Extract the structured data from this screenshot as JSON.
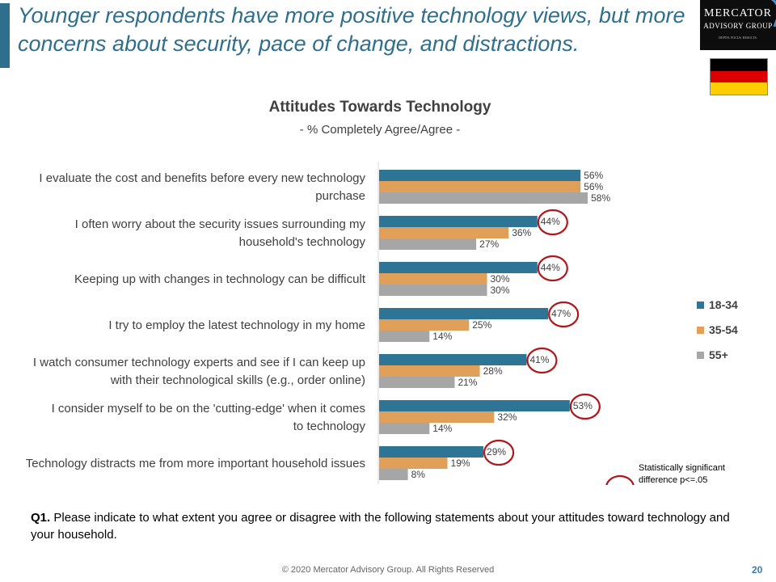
{
  "slide": {
    "headline": "Younger respondents have more positive technology views, but more concerns about security, pace of change, and distractions.",
    "logo_line1": "MERCATOR",
    "logo_line2": "ADVISORY GROUP",
    "logo_tagline": "DEPTH. FOCUS. RESULTS.",
    "footnote_q": "Q1.",
    "footnote_text": " Please indicate to what extent you agree or disagree with the following statements about your attitudes toward technology and your household.",
    "sig_legend_text": "Statistically significant difference p<=.05",
    "copyright": "© 2020 Mercator Advisory Group. All Rights Reserved",
    "page_number": "20"
  },
  "colors": {
    "accent": "#2e6f8e",
    "series_18_34": "#2e7595",
    "series_35_54": "#e0a05a",
    "series_55_plus": "#a6a6a6",
    "circle": "#b0161c",
    "flag_black": "#000000",
    "flag_red": "#dd0000",
    "flag_gold": "#ffce00"
  },
  "chart_data": {
    "type": "bar",
    "orientation": "horizontal",
    "title": "Attitudes Towards Technology",
    "subtitle": "- % Completely Agree/Agree -",
    "categories": [
      "I evaluate the cost and benefits before every new technology purchase",
      "I often worry about the security issues surrounding my household's technology",
      "Keeping up with changes in technology can be difficult",
      "I try to employ the latest technology in my home",
      "I watch consumer technology experts and see if I can keep up with their technological skills (e.g., order online)",
      "I consider myself to be on the 'cutting-edge' when it comes to technology",
      "Technology distracts me from more important household issues"
    ],
    "series": [
      {
        "name": "18-34",
        "values": [
          56,
          44,
          44,
          47,
          41,
          53,
          29
        ]
      },
      {
        "name": "35-54",
        "values": [
          56,
          36,
          30,
          25,
          28,
          32,
          19
        ]
      },
      {
        "name": "55+",
        "values": [
          58,
          27,
          30,
          14,
          21,
          14,
          8
        ]
      }
    ],
    "value_suffix": "%",
    "significant": [
      {
        "category": 1,
        "series": 0
      },
      {
        "category": 2,
        "series": 0
      },
      {
        "category": 3,
        "series": 0
      },
      {
        "category": 4,
        "series": 0
      },
      {
        "category": 5,
        "series": 0
      },
      {
        "category": 6,
        "series": 0
      }
    ],
    "legend_position": "right",
    "xlim": [
      0,
      100
    ],
    "grid": false
  }
}
